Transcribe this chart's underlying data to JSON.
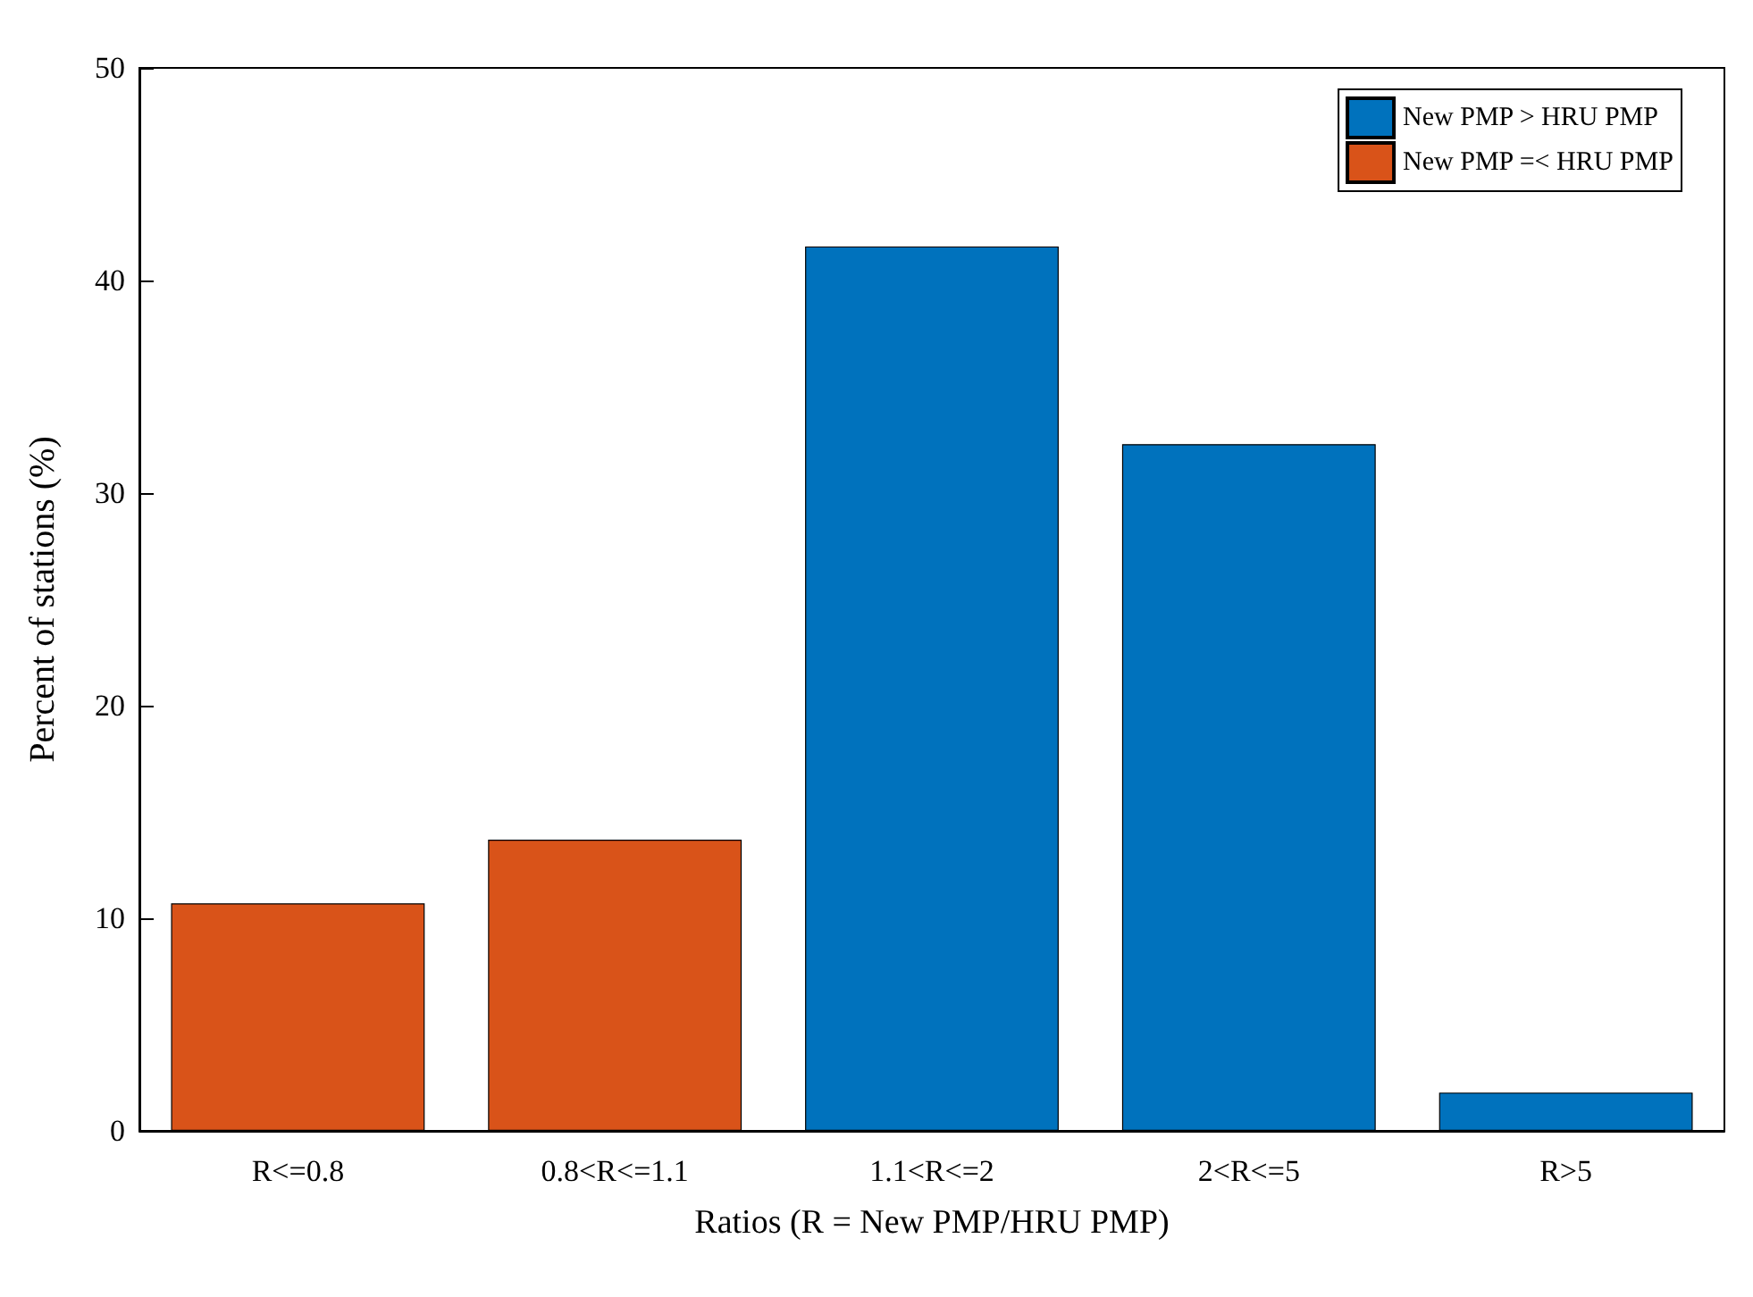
{
  "chart_data": {
    "type": "bar",
    "xlabel": "Ratios (R = New PMP/HRU PMP)",
    "ylabel": "Percent of stations (%)",
    "categories": [
      "R<=0.8",
      "0.8<R<=1.1",
      "1.1<R<=2",
      "2<R<=5",
      "R>5"
    ],
    "series": [
      {
        "name": "New PMP > HRU PMP",
        "color": "#0072bd",
        "values": [
          null,
          null,
          41.6,
          32.3,
          1.8
        ]
      },
      {
        "name": "New PMP =< HRU PMP",
        "color": "#d95319",
        "values": [
          10.7,
          13.7,
          null,
          null,
          null
        ]
      }
    ],
    "ylim": [
      0,
      50
    ],
    "yticks": [
      0,
      10,
      20,
      30,
      40,
      50
    ],
    "grid": false,
    "legend": "top right"
  }
}
